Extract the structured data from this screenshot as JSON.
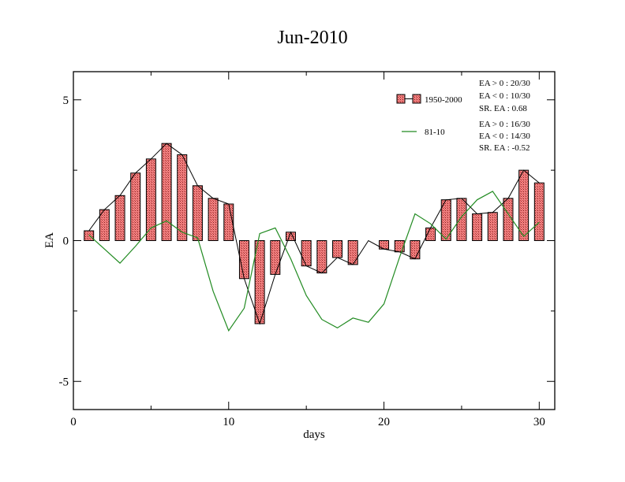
{
  "chart_data": {
    "type": "bar",
    "title": "Jun-2010",
    "xlabel": "days",
    "ylabel": "EA",
    "xlim": [
      0,
      31
    ],
    "ylim": [
      -6,
      6
    ],
    "x_ticks": [
      0,
      10,
      20,
      30
    ],
    "x_tick_labels": [
      "0",
      "10",
      "20",
      "30"
    ],
    "y_ticks": [
      -5,
      0,
      5
    ],
    "y_tick_labels": [
      "-5",
      "0",
      "5"
    ],
    "grid": false,
    "legend_position": "top-right",
    "x": [
      1,
      2,
      3,
      4,
      5,
      6,
      7,
      8,
      9,
      10,
      11,
      12,
      13,
      14,
      15,
      16,
      17,
      18,
      19,
      20,
      21,
      22,
      23,
      24,
      25,
      26,
      27,
      28,
      29,
      30
    ],
    "series": [
      {
        "name": "1950-2000",
        "kind": "bar",
        "fill": "#f08080",
        "values": [
          0.35,
          1.1,
          1.6,
          2.4,
          2.9,
          3.45,
          3.05,
          1.95,
          1.5,
          1.3,
          -1.35,
          -2.95,
          -1.2,
          0.3,
          -0.9,
          -1.15,
          -0.6,
          -0.85,
          0.0,
          -0.3,
          -0.4,
          -0.65,
          0.45,
          1.45,
          1.5,
          0.95,
          1.0,
          1.5,
          2.5,
          2.05
        ]
      },
      {
        "name": "81-10",
        "kind": "line",
        "color": "#228b22",
        "values": [
          0.2,
          -0.3,
          -0.8,
          -0.2,
          0.45,
          0.7,
          0.3,
          0.1,
          -1.8,
          -3.2,
          -2.4,
          0.25,
          0.45,
          -0.65,
          -1.95,
          -2.8,
          -3.1,
          -2.75,
          -2.9,
          -2.25,
          -0.6,
          0.95,
          0.6,
          0.05,
          0.85,
          1.45,
          1.75,
          0.95,
          0.15,
          0.65
        ]
      }
    ],
    "annotations": [
      [
        "EA > 0 : 20/30",
        "EA < 0 : 10/30",
        "SR. EA :  0.68"
      ],
      [
        "EA > 0 : 16/30",
        "EA < 0 : 14/30",
        "SR. EA : -0.52"
      ]
    ]
  }
}
